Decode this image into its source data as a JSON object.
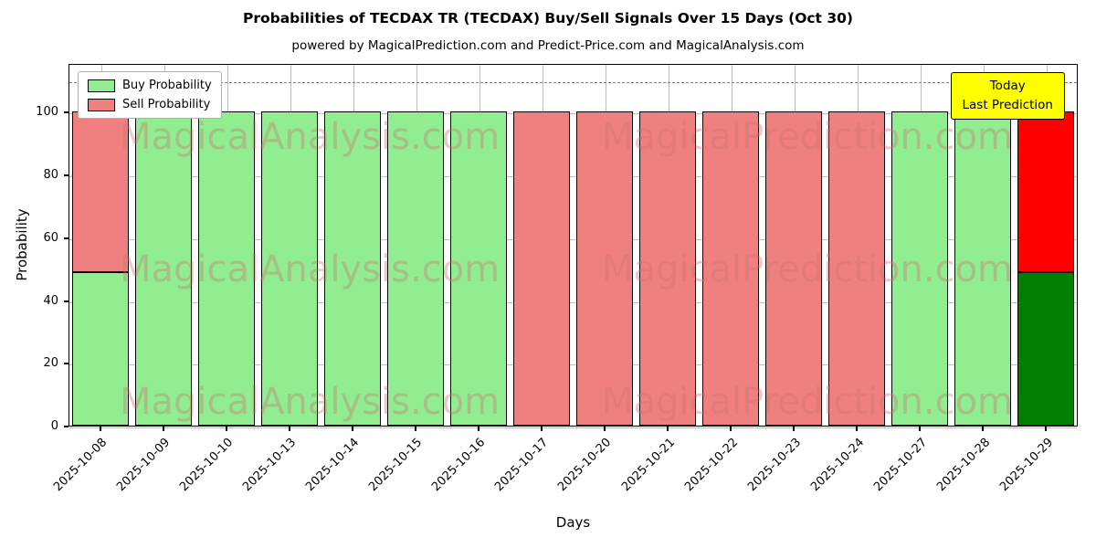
{
  "chart_data": {
    "type": "bar",
    "stacked": true,
    "title": "Probabilities of TECDAX TR (TECDAX) Buy/Sell Signals Over 15 Days (Oct 30)",
    "subtitle": "powered by MagicalPrediction.com and Predict-Price.com and MagicalAnalysis.com",
    "xlabel": "Days",
    "ylabel": "Probability",
    "ylim": [
      0,
      115.5
    ],
    "yticks": [
      0,
      20,
      40,
      60,
      80,
      100
    ],
    "grid": true,
    "dashed_line_y": 110,
    "legend_position": "upper left",
    "bar_edge_color": "#000000",
    "categories": [
      "2025-10-08",
      "2025-10-09",
      "2025-10-10",
      "2025-10-13",
      "2025-10-14",
      "2025-10-15",
      "2025-10-16",
      "2025-10-17",
      "2025-10-20",
      "2025-10-21",
      "2025-10-22",
      "2025-10-23",
      "2025-10-24",
      "2025-10-27",
      "2025-10-28",
      "2025-10-29"
    ],
    "series": [
      {
        "name": "Buy Probability",
        "color": "#90ee90",
        "values": [
          49,
          100,
          100,
          100,
          100,
          100,
          100,
          0,
          0,
          0,
          0,
          0,
          0,
          100,
          100,
          49
        ]
      },
      {
        "name": "Sell Probability",
        "color": "#f08080",
        "values": [
          51,
          0,
          0,
          0,
          0,
          0,
          0,
          100,
          100,
          100,
          100,
          100,
          100,
          0,
          0,
          51
        ]
      }
    ],
    "today_highlight": {
      "category": "2025-10-29",
      "index": 15,
      "buy_color": "#008000",
      "sell_color": "#ff0000"
    }
  },
  "annotation_box": {
    "line1": "Today",
    "line2": "Last Prediction",
    "bg_color": "#ffff00"
  },
  "watermark": {
    "left_text": "MagicalAnalysis.com",
    "right_text": "MagicalPrediction.com"
  }
}
